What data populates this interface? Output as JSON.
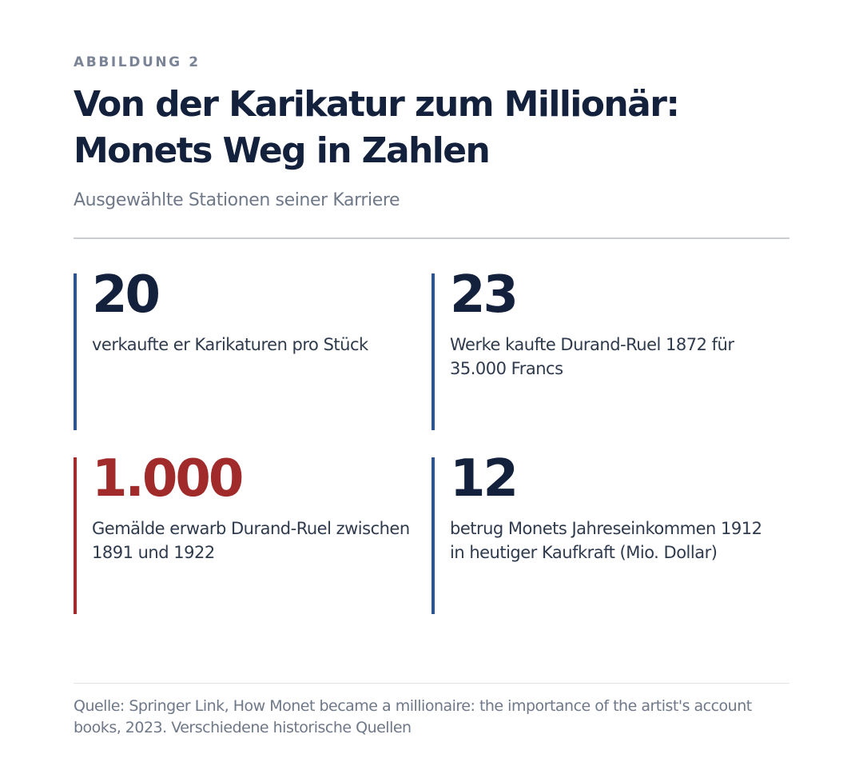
{
  "figure": {
    "eyebrow": "ABBILDUNG 2",
    "title_line1": "Von der Karikatur zum Millionär:",
    "title_line2": "Monets Weg in Zahlen",
    "subtitle": "Ausgewählte Stationen seiner Karriere"
  },
  "stats": [
    {
      "value": "20",
      "label": "verkaufte er Karikaturen pro Stück",
      "accent_color": "#2e5490"
    },
    {
      "value": "23",
      "label": "Werke kaufte Durand-Ruel 1872 für 35.000 Francs",
      "accent_color": "#2e5490"
    },
    {
      "value": "1.000",
      "label": "Gemälde erwarb Durand-Ruel zwischen 1891 und 1922",
      "accent_color": "#a12b2b"
    },
    {
      "value": "12",
      "label": "betrug Monets Jahreseinkommen 1912 in heutiger Kaufkraft (Mio. Dollar)",
      "accent_color": "#2e5490"
    }
  ],
  "source": "Quelle: Springer Link, How Monet became a millionaire: the importance of the artist's account books, 2023. Verschiedene historische Quellen",
  "colors": {
    "heading": "#14213d",
    "muted": "#6f7888",
    "primary_accent": "#2e5490",
    "highlight_accent": "#a12b2b"
  }
}
